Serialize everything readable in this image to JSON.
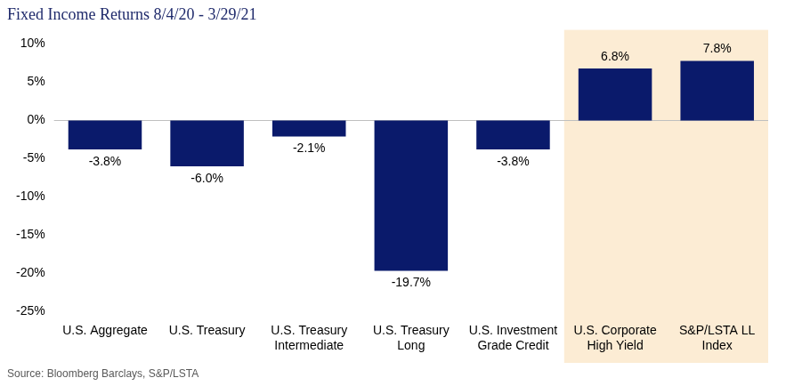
{
  "chart_data": {
    "type": "bar",
    "title": "Fixed Income Returns 8/4/20 - 3/29/21",
    "source": "Source: Bloomberg Barclays, S&P/LSTA",
    "categories": [
      "U.S. Aggregate",
      "U.S. Treasury",
      "U.S. Treasury Intermediate",
      "U.S. Treasury Long",
      "U.S. Investment Grade Credit",
      "U.S. Corporate High Yield",
      "S&P/LSTA LL Index"
    ],
    "values": [
      -3.8,
      -6.0,
      -2.1,
      -19.7,
      -3.8,
      6.8,
      7.8
    ],
    "value_labels": [
      "-3.8%",
      "-6.0%",
      "-2.1%",
      "-19.7%",
      "-3.8%",
      "6.8%",
      "7.8%"
    ],
    "color": "#0a1a6b",
    "ylim": [
      -25,
      10
    ],
    "yticks": [
      {
        "value": -25,
        "label": "-25%"
      },
      {
        "value": -20,
        "label": "-20%"
      },
      {
        "value": -15,
        "label": "-15%"
      },
      {
        "value": -10,
        "label": "-10%"
      },
      {
        "value": -5,
        "label": "-5%"
      },
      {
        "value": 0,
        "label": "0%"
      },
      {
        "value": 5,
        "label": "5%"
      },
      {
        "value": 10,
        "label": "10%"
      }
    ],
    "grid": false,
    "data_labels": true
  }
}
